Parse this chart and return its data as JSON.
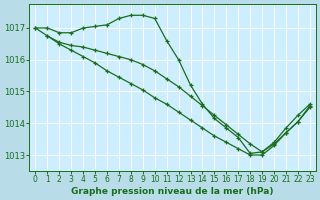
{
  "background_color": "#b8dde8",
  "plot_bg_color": "#cceeff",
  "line_color": "#1a6e1a",
  "grid_color": "#ffffff",
  "xlabel": "Graphe pression niveau de la mer (hPa)",
  "xlabel_color": "#1a6e1a",
  "tick_color": "#1a6e1a",
  "xlim": [
    -0.5,
    23.5
  ],
  "ylim": [
    1012.5,
    1017.75
  ],
  "yticks": [
    1013,
    1014,
    1015,
    1016,
    1017
  ],
  "xticks": [
    0,
    1,
    2,
    3,
    4,
    5,
    6,
    7,
    8,
    9,
    10,
    11,
    12,
    13,
    14,
    15,
    16,
    17,
    18,
    19,
    20,
    21,
    22,
    23
  ],
  "series": [
    {
      "x": [
        0,
        1,
        2,
        3,
        4,
        5,
        6,
        7,
        8,
        9,
        10,
        11,
        12,
        13,
        14,
        15,
        16,
        17,
        18,
        19,
        20,
        21,
        22,
        23
      ],
      "y": [
        1017.0,
        1017.0,
        1016.85,
        1016.85,
        1017.0,
        1017.05,
        1017.1,
        1017.3,
        1017.4,
        1017.4,
        1017.3,
        1016.6,
        1016.0,
        1015.2,
        1014.6,
        1014.15,
        1013.85,
        1013.55,
        1013.05,
        1013.1,
        1013.4,
        1013.85,
        1014.25,
        1014.6
      ]
    },
    {
      "x": [
        0,
        1,
        2,
        3,
        4,
        5,
        6,
        7,
        8,
        9,
        10,
        11,
        12,
        13,
        14,
        15,
        16,
        17,
        18,
        19,
        20,
        21,
        22,
        23
      ],
      "y": [
        1017.0,
        1016.75,
        1016.5,
        1016.3,
        1016.1,
        1015.9,
        1015.65,
        1015.45,
        1015.25,
        1015.05,
        1014.8,
        1014.6,
        1014.35,
        1014.1,
        1013.85,
        1013.6,
        1013.4,
        1013.2,
        1013.0,
        1013.0,
        1013.3,
        1013.7,
        1014.05,
        1014.55
      ]
    },
    {
      "x": [
        1,
        2,
        3,
        4,
        5,
        6,
        7,
        8,
        9,
        10,
        11,
        12,
        13,
        14,
        15,
        16,
        17,
        18,
        19,
        20,
        21,
        22,
        23
      ],
      "y": [
        1016.75,
        1016.55,
        1016.45,
        1016.4,
        1016.3,
        1016.2,
        1016.1,
        1016.0,
        1015.85,
        1015.65,
        1015.4,
        1015.15,
        1014.85,
        1014.55,
        1014.25,
        1013.95,
        1013.65,
        1013.35,
        1013.1,
        1013.35,
        1013.7,
        1014.05,
        1014.5
      ]
    }
  ],
  "marker": "+",
  "markersize": 3,
  "linewidth": 0.9
}
